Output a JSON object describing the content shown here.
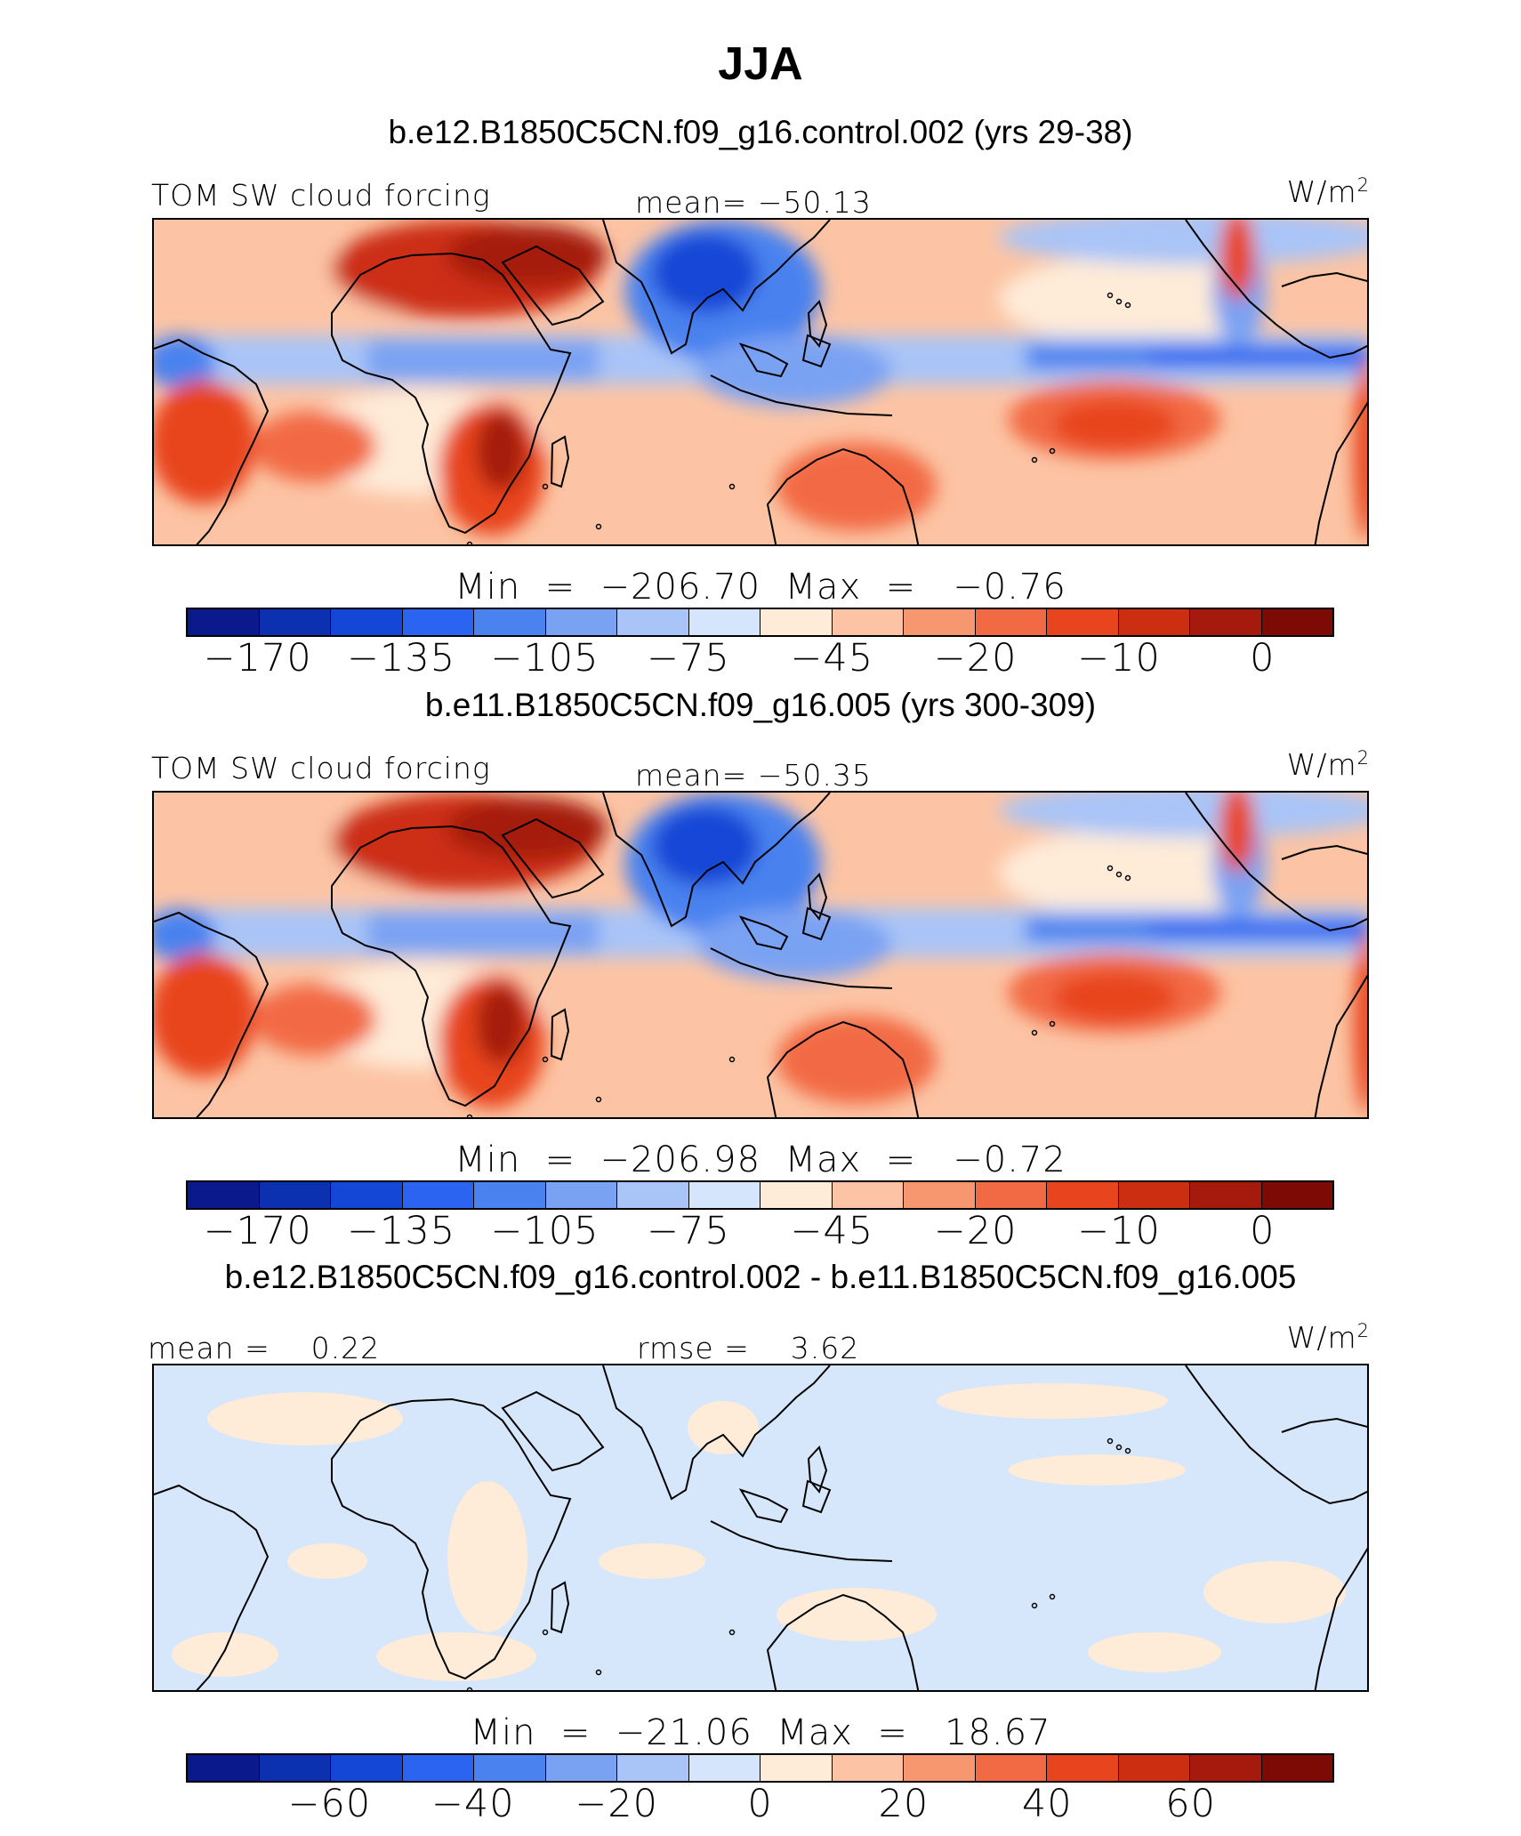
{
  "page_title": "JJA",
  "panels": [
    {
      "case_title": "b.e12.B1850C5CN.f09_g16.control.002 (yrs 29-38)",
      "left_label": "TOM SW cloud forcing",
      "center_label": "mean= −50.13",
      "units": "W/m",
      "units_sup": "2",
      "minmax": "Min  =  −206.70  Max  =   −0.76",
      "ticks": [
        "−170",
        "−135",
        "−105",
        "−75",
        "−45",
        "−20",
        "−10",
        "0"
      ],
      "map_kind": "abs",
      "map_description": "Global tropical band map (40S-40N) of shortwave cloud forcing"
    },
    {
      "case_title": "b.e11.B1850C5CN.f09_g16.005 (yrs 300-309)",
      "left_label": "TOM SW cloud forcing",
      "center_label": "mean= −50.35",
      "units": "W/m",
      "units_sup": "2",
      "minmax": "Min  =  −206.98  Max  =   −0.72",
      "ticks": [
        "−170",
        "−135",
        "−105",
        "−75",
        "−45",
        "−20",
        "−10",
        "0"
      ],
      "map_kind": "abs"
    },
    {
      "case_title": "b.e12.B1850C5CN.f09_g16.control.002 - b.e11.B1850C5CN.f09_g16.005",
      "left_label": "mean =    0.22",
      "center_label": "rmse =    3.62",
      "units": "W/m",
      "units_sup": "2",
      "minmax": "Min  =  −21.06  Max  =   18.67",
      "ticks": [
        "−60",
        "−40",
        "−20",
        "0",
        "20",
        "40",
        "60"
      ],
      "map_kind": "diff"
    }
  ],
  "colorbar_colors": [
    "#0a1a8c",
    "#0b30b0",
    "#1447d6",
    "#2a64f0",
    "#4a82ef",
    "#7aa2f3",
    "#a9c4f7",
    "#d5e5fb",
    "#feebd8",
    "#fcc4a4",
    "#f7976f",
    "#f26a44",
    "#e8451f",
    "#cc2e12",
    "#a51a0c",
    "#7d0a05"
  ],
  "map_colors": {
    "diff_ocean_light": "#d6e6fb",
    "diff_warm_light": "#feebd8"
  }
}
